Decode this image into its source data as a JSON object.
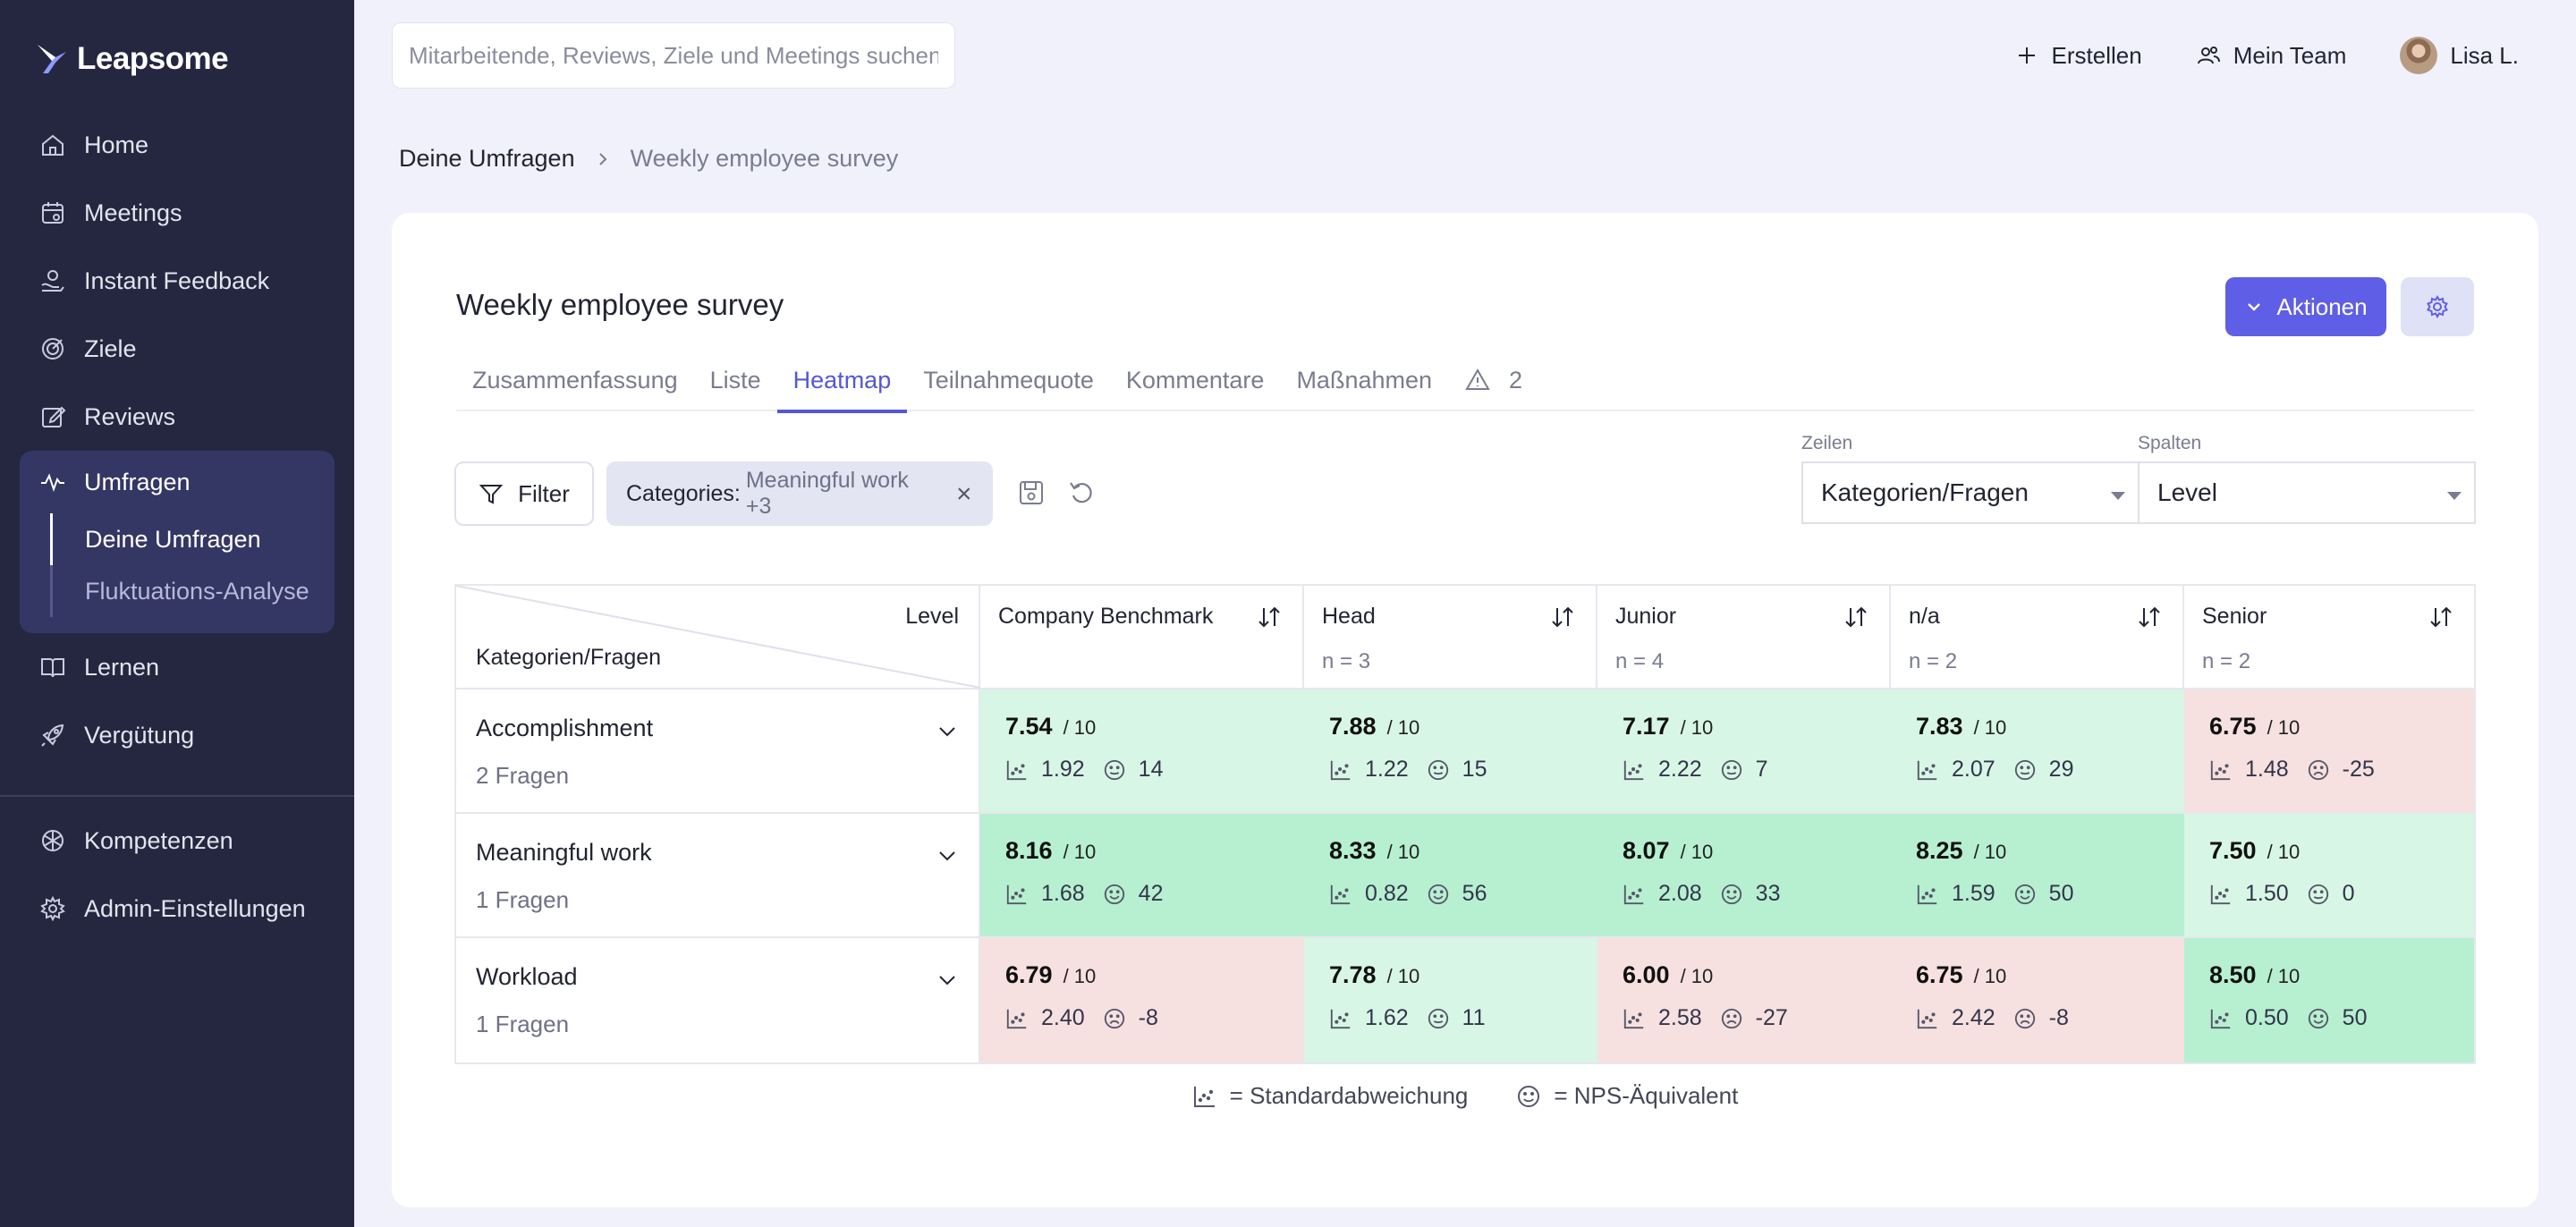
{
  "sidebar": {
    "logo": "Leapsome",
    "items": [
      {
        "label": "Home",
        "icon": "home-icon"
      },
      {
        "label": "Meetings",
        "icon": "calendar-icon"
      },
      {
        "label": "Instant Feedback",
        "icon": "feedback-icon"
      },
      {
        "label": "Ziele",
        "icon": "target-icon"
      },
      {
        "label": "Reviews",
        "icon": "edit-icon"
      }
    ],
    "active_group": {
      "label": "Umfragen",
      "icon": "pulse-icon",
      "subitems": [
        {
          "label": "Deine Umfragen",
          "active": true
        },
        {
          "label": "Fluktuations-Analyse",
          "active": false
        }
      ]
    },
    "items_after": [
      {
        "label": "Lernen",
        "icon": "book-icon"
      },
      {
        "label": "Vergütung",
        "icon": "rocket-icon"
      }
    ],
    "bottom_items": [
      {
        "label": "Kompetenzen",
        "icon": "competence-icon"
      },
      {
        "label": "Admin-Einstellungen",
        "icon": "gear-icon"
      }
    ]
  },
  "topbar": {
    "search_placeholder": "Mitarbeitende, Reviews, Ziele und Meetings suchen",
    "create_label": "Erstellen",
    "team_label": "Mein Team",
    "user_label": "Lisa L."
  },
  "breadcrumb": {
    "parent": "Deine Umfragen",
    "current": "Weekly employee survey"
  },
  "survey": {
    "title": "Weekly employee survey",
    "actions_label": "Aktionen",
    "tabs": [
      {
        "label": "Zusammenfassung",
        "active": false
      },
      {
        "label": "Liste",
        "active": false
      },
      {
        "label": "Heatmap",
        "active": true
      },
      {
        "label": "Teilnahmequote",
        "active": false
      },
      {
        "label": "Kommentare",
        "active": false
      },
      {
        "label": "Maßnahmen",
        "active": false
      }
    ],
    "warning_count": "2"
  },
  "filters": {
    "filter_label": "Filter",
    "chip_key": "Categories:",
    "chip_value": "Meaningful work +3",
    "rows_label": "Zeilen",
    "rows_value": "Kategorien/Fragen",
    "cols_label": "Spalten",
    "cols_value": "Level"
  },
  "heatmap": {
    "corner_col": "Level",
    "corner_row": "Kategorien/Fragen",
    "columns": [
      {
        "label": "Company Benchmark",
        "n": ""
      },
      {
        "label": "Head",
        "n": "n = 3"
      },
      {
        "label": "Junior",
        "n": "n = 4"
      },
      {
        "label": "n/a",
        "n": "n = 2"
      },
      {
        "label": "Senior",
        "n": "n = 2"
      }
    ],
    "rows": [
      {
        "label": "Accomplishment",
        "questions": "2 Fragen",
        "cells": [
          {
            "score": "7.54",
            "den": "/ 10",
            "sd": "1.92",
            "nps": "14",
            "tone": "good",
            "mood": "neutral"
          },
          {
            "score": "7.88",
            "den": "/ 10",
            "sd": "1.22",
            "nps": "15",
            "tone": "good",
            "mood": "neutral"
          },
          {
            "score": "7.17",
            "den": "/ 10",
            "sd": "2.22",
            "nps": "7",
            "tone": "good",
            "mood": "neutral"
          },
          {
            "score": "7.83",
            "den": "/ 10",
            "sd": "2.07",
            "nps": "29",
            "tone": "good",
            "mood": "neutral"
          },
          {
            "score": "6.75",
            "den": "/ 10",
            "sd": "1.48",
            "nps": "-25",
            "tone": "bad",
            "mood": "sad"
          }
        ]
      },
      {
        "label": "Meaningful work",
        "questions": "1 Fragen",
        "cells": [
          {
            "score": "8.16",
            "den": "/ 10",
            "sd": "1.68",
            "nps": "42",
            "tone": "great",
            "mood": "happy"
          },
          {
            "score": "8.33",
            "den": "/ 10",
            "sd": "0.82",
            "nps": "56",
            "tone": "great",
            "mood": "happy"
          },
          {
            "score": "8.07",
            "den": "/ 10",
            "sd": "2.08",
            "nps": "33",
            "tone": "great",
            "mood": "happy"
          },
          {
            "score": "8.25",
            "den": "/ 10",
            "sd": "1.59",
            "nps": "50",
            "tone": "great",
            "mood": "happy"
          },
          {
            "score": "7.50",
            "den": "/ 10",
            "sd": "1.50",
            "nps": "0",
            "tone": "good",
            "mood": "neutral"
          }
        ]
      },
      {
        "label": "Workload",
        "questions": "1 Fragen",
        "cells": [
          {
            "score": "6.79",
            "den": "/ 10",
            "sd": "2.40",
            "nps": "-8",
            "tone": "bad",
            "mood": "sad"
          },
          {
            "score": "7.78",
            "den": "/ 10",
            "sd": "1.62",
            "nps": "11",
            "tone": "good",
            "mood": "neutral"
          },
          {
            "score": "6.00",
            "den": "/ 10",
            "sd": "2.58",
            "nps": "-27",
            "tone": "bad",
            "mood": "sad"
          },
          {
            "score": "6.75",
            "den": "/ 10",
            "sd": "2.42",
            "nps": "-8",
            "tone": "bad",
            "mood": "sad"
          },
          {
            "score": "8.50",
            "den": "/ 10",
            "sd": "0.50",
            "nps": "50",
            "tone": "great",
            "mood": "happy"
          }
        ]
      }
    ],
    "legend_sd": "= Standardabweichung",
    "legend_nps": "= NPS-Äquivalent"
  },
  "colors": {
    "accent": "#5f5ee6",
    "sidebar": "#252740",
    "good": "#d8f6e5",
    "great": "#b6f0d1",
    "bad": "#f6e0e0"
  }
}
